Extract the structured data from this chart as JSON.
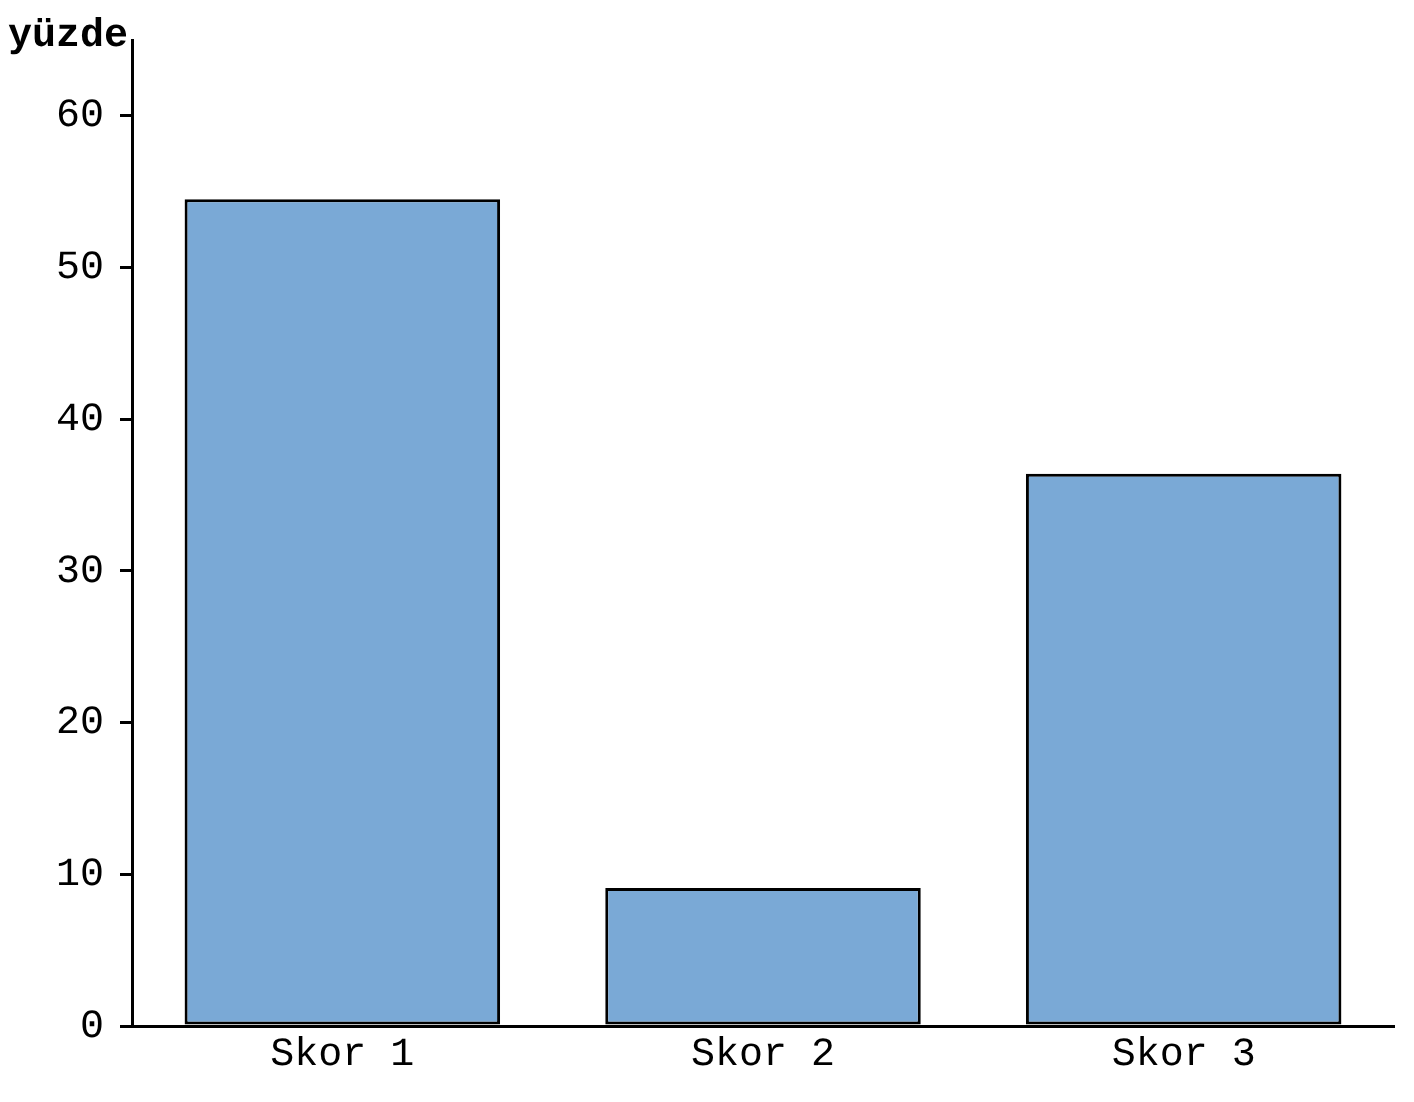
{
  "chart_data": {
    "type": "bar",
    "ylabel": "yüzde",
    "categories": [
      "Skor 1",
      "Skor 2",
      "Skor 3"
    ],
    "values": [
      54.5,
      9.1,
      36.4
    ],
    "color": "#7aa9d6",
    "ylim": [
      0,
      65
    ],
    "yticks": [
      0,
      10,
      20,
      30,
      40,
      50,
      60
    ],
    "grid": false
  }
}
